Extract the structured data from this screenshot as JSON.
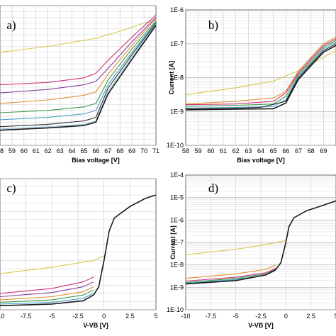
{
  "figure": {
    "panels": [
      {
        "id": "a",
        "label": "a)"
      },
      {
        "id": "b",
        "label": "b)"
      },
      {
        "id": "c",
        "label": "c)"
      },
      {
        "id": "d",
        "label": "d)"
      }
    ]
  },
  "chart_data": [
    {
      "panel": "a)",
      "type": "line",
      "title": "",
      "xlabel": "Bias voltage [V]",
      "ylabel": "",
      "y_scale": "linear",
      "grid": true,
      "xlim": [
        58,
        71
      ],
      "x_ticks": [
        "58",
        "59",
        "60",
        "61",
        "62",
        "63",
        "64",
        "65",
        "66",
        "67",
        "68",
        "69",
        "70",
        "71"
      ],
      "y_tick_labels": [],
      "series": [
        {
          "color": "#d9c64a",
          "points": [
            [
              58,
              8.0
            ],
            [
              62,
              8.5
            ],
            [
              66,
              9.2
            ],
            [
              68,
              9.8
            ],
            [
              70,
              10.5
            ],
            [
              71,
              10.8
            ]
          ]
        },
        {
          "color": "#d0307a",
          "points": [
            [
              58,
              5.2
            ],
            [
              62,
              5.4
            ],
            [
              65,
              5.8
            ],
            [
              66,
              6.2
            ],
            [
              67,
              7.3
            ],
            [
              69,
              9.3
            ],
            [
              71,
              11.2
            ]
          ]
        },
        {
          "color": "#8a3a9e",
          "points": [
            [
              58,
              4.5
            ],
            [
              62,
              4.8
            ],
            [
              65,
              5.2
            ],
            [
              66,
              5.5
            ],
            [
              67,
              6.6
            ],
            [
              69,
              8.9
            ],
            [
              71,
              11.0
            ]
          ]
        },
        {
          "color": "#e09030",
          "points": [
            [
              58,
              3.6
            ],
            [
              62,
              3.9
            ],
            [
              65,
              4.3
            ],
            [
              66,
              4.6
            ],
            [
              67,
              6.1
            ],
            [
              69,
              8.6
            ],
            [
              71,
              10.9
            ]
          ]
        },
        {
          "color": "#3a9a4a",
          "points": [
            [
              58,
              2.8
            ],
            [
              62,
              3.0
            ],
            [
              65,
              3.3
            ],
            [
              66,
              3.6
            ],
            [
              67,
              5.6
            ],
            [
              69,
              8.3
            ],
            [
              71,
              10.7
            ]
          ]
        },
        {
          "color": "#4aa0c8",
          "points": [
            [
              58,
              2.2
            ],
            [
              62,
              2.4
            ],
            [
              65,
              2.7
            ],
            [
              66,
              3.0
            ],
            [
              67,
              5.2
            ],
            [
              69,
              8.0
            ],
            [
              71,
              10.6
            ]
          ]
        },
        {
          "color": "#2a2a2a",
          "points": [
            [
              58,
              1.6
            ],
            [
              62,
              1.8
            ],
            [
              65,
              2.1
            ],
            [
              66,
              2.4
            ],
            [
              67,
              4.9
            ],
            [
              69,
              7.8
            ],
            [
              71,
              10.5
            ]
          ]
        },
        {
          "color": "#8fc8e0",
          "points": [
            [
              58,
              1.4
            ],
            [
              62,
              1.6
            ],
            [
              65,
              1.8
            ],
            [
              66,
              2.1
            ],
            [
              67,
              4.6
            ],
            [
              69,
              7.6
            ],
            [
              71,
              10.4
            ]
          ]
        },
        {
          "color": "#1a1a1a",
          "points": [
            [
              58,
              1.3
            ],
            [
              62,
              1.5
            ],
            [
              65,
              1.7
            ],
            [
              66,
              2.0
            ],
            [
              67,
              4.4
            ],
            [
              69,
              7.4
            ],
            [
              71,
              10.3
            ]
          ]
        }
      ]
    },
    {
      "panel": "b)",
      "type": "line",
      "title": "",
      "xlabel": "Bias voltage [V]",
      "ylabel": "Current [A]",
      "y_scale": "log",
      "grid": true,
      "xlim": [
        58,
        70
      ],
      "ylim": [
        "1E-10",
        "1E-6"
      ],
      "x_ticks": [
        "58",
        "59",
        "60",
        "61",
        "62",
        "63",
        "64",
        "65",
        "66",
        "67",
        "68",
        "69"
      ],
      "y_tick_labels": [
        "1E-6",
        "1E-7",
        "1E-8",
        "1E-9",
        "1E-10"
      ],
      "series": [
        {
          "color": "#d9c64a",
          "points": [
            [
              58,
              -8.5
            ],
            [
              62,
              -8.3
            ],
            [
              65,
              -8.1
            ],
            [
              67,
              -7.8
            ],
            [
              69,
              -7.4
            ],
            [
              70,
              -7.2
            ]
          ]
        },
        {
          "color": "#e09030",
          "points": [
            [
              58,
              -8.78
            ],
            [
              62,
              -8.7
            ],
            [
              65,
              -8.6
            ],
            [
              66,
              -8.4
            ],
            [
              67,
              -7.8
            ],
            [
              69,
              -7.0
            ],
            [
              70,
              -6.8
            ]
          ]
        },
        {
          "color": "#d0307a",
          "points": [
            [
              58,
              -8.8
            ],
            [
              62,
              -8.78
            ],
            [
              65,
              -8.7
            ],
            [
              66,
              -8.45
            ],
            [
              67,
              -7.85
            ],
            [
              69,
              -7.05
            ],
            [
              70,
              -6.85
            ]
          ]
        },
        {
          "color": "#3a9a4a",
          "points": [
            [
              58,
              -8.85
            ],
            [
              62,
              -8.82
            ],
            [
              65,
              -8.78
            ],
            [
              66,
              -8.55
            ],
            [
              67,
              -7.9
            ],
            [
              69,
              -7.1
            ],
            [
              70,
              -6.9
            ]
          ]
        },
        {
          "color": "#4aa0c8",
          "points": [
            [
              58,
              -8.9
            ],
            [
              62,
              -8.88
            ],
            [
              65,
              -8.85
            ],
            [
              66,
              -8.65
            ],
            [
              67,
              -7.95
            ],
            [
              69,
              -7.15
            ],
            [
              70,
              -6.95
            ]
          ]
        },
        {
          "color": "#2a2a2a",
          "points": [
            [
              58,
              -8.92
            ],
            [
              62,
              -8.9
            ],
            [
              64,
              -8.88
            ],
            [
              66,
              -8.7
            ],
            [
              67,
              -8.0
            ],
            [
              69,
              -7.2
            ],
            [
              70,
              -7.0
            ]
          ]
        },
        {
          "color": "#1a1a1a",
          "points": [
            [
              58,
              -8.95
            ],
            [
              62,
              -8.93
            ],
            [
              65,
              -8.92
            ],
            [
              66,
              -8.75
            ],
            [
              67,
              -8.05
            ],
            [
              69,
              -7.25
            ],
            [
              70,
              -7.05
            ]
          ]
        }
      ]
    },
    {
      "panel": "c)",
      "type": "line",
      "title": "",
      "xlabel": "V-VB [V]",
      "ylabel": "",
      "y_scale": "linear",
      "grid": true,
      "xlim": [
        -10,
        5
      ],
      "x_ticks": [
        "-10",
        "-7.5",
        "-5",
        "-2.5",
        "0",
        "2.5",
        "5"
      ],
      "y_tick_labels": [],
      "series": [
        {
          "color": "#d9c64a",
          "points": [
            [
              -10,
              2.2
            ],
            [
              -5,
              2.6
            ],
            [
              -1,
              3.0
            ],
            [
              0,
              3.3
            ]
          ]
        },
        {
          "color": "#d0307a",
          "points": [
            [
              -10,
              1.0
            ],
            [
              -5,
              1.3
            ],
            [
              -2,
              1.7
            ],
            [
              -1,
              2.0
            ]
          ]
        },
        {
          "color": "#8a3a9e",
          "points": [
            [
              -10,
              0.8
            ],
            [
              -5,
              1.05
            ],
            [
              -2,
              1.4
            ],
            [
              -1,
              1.7
            ]
          ]
        },
        {
          "color": "#e09030",
          "points": [
            [
              -10,
              0.6
            ],
            [
              -5,
              0.8
            ],
            [
              -2,
              1.1
            ],
            [
              -1,
              1.4
            ]
          ]
        },
        {
          "color": "#3a9a4a",
          "points": [
            [
              -10,
              0.45
            ],
            [
              -5,
              0.6
            ],
            [
              -2,
              0.9
            ],
            [
              -1,
              1.2
            ]
          ]
        },
        {
          "color": "#4aa0c8",
          "points": [
            [
              -10,
              0.35
            ],
            [
              -5,
              0.45
            ],
            [
              -2,
              0.7
            ],
            [
              -1,
              1.0
            ]
          ]
        },
        {
          "color": "#1a1a1a",
          "points": [
            [
              -10,
              0.25
            ],
            [
              -5,
              0.35
            ],
            [
              -2,
              0.55
            ],
            [
              -1,
              0.9
            ],
            [
              -0.5,
              1.4
            ],
            [
              0,
              3.0
            ],
            [
              0.5,
              4.8
            ],
            [
              1,
              5.6
            ],
            [
              2.5,
              6.3
            ],
            [
              4,
              6.8
            ],
            [
              5,
              7.0
            ]
          ]
        }
      ]
    },
    {
      "panel": "d)",
      "type": "line",
      "title": "",
      "xlabel": "V-VB [V]",
      "ylabel": "Current [A]",
      "y_scale": "log",
      "grid": true,
      "xlim": [
        -10,
        5
      ],
      "ylim": [
        "1E-10",
        "1E-4"
      ],
      "x_ticks": [
        "-10",
        "-7.5",
        "-5",
        "-2.5",
        "0",
        "2.5",
        "5"
      ],
      "y_tick_labels": [
        "1E-4",
        "1E-5",
        "1E-6",
        "1E-7",
        "1E-8",
        "1E-9",
        "1E-10"
      ],
      "series": [
        {
          "color": "#d9c64a",
          "points": [
            [
              -10,
              -7.55
            ],
            [
              -5,
              -7.3
            ],
            [
              -2,
              -7.1
            ],
            [
              0,
              -6.9
            ]
          ]
        },
        {
          "color": "#e09030",
          "points": [
            [
              -10,
              -8.6
            ],
            [
              -5,
              -8.4
            ],
            [
              -2,
              -8.2
            ],
            [
              -1,
              -8.0
            ]
          ]
        },
        {
          "color": "#d0307a",
          "points": [
            [
              -10,
              -8.72
            ],
            [
              -5,
              -8.55
            ],
            [
              -2,
              -8.35
            ],
            [
              -1,
              -8.15
            ]
          ]
        },
        {
          "color": "#3a9a4a",
          "points": [
            [
              -10,
              -8.78
            ],
            [
              -5,
              -8.6
            ],
            [
              -2,
              -8.4
            ],
            [
              -1,
              -8.2
            ]
          ]
        },
        {
          "color": "#4aa0c8",
          "points": [
            [
              -10,
              -8.82
            ],
            [
              -5,
              -8.65
            ],
            [
              -2,
              -8.45
            ],
            [
              -1,
              -8.25
            ]
          ]
        },
        {
          "color": "#1a1a1a",
          "points": [
            [
              -10,
              -8.85
            ],
            [
              -5,
              -8.7
            ],
            [
              -2,
              -8.45
            ],
            [
              -1,
              -8.2
            ],
            [
              -0.5,
              -7.9
            ],
            [
              0,
              -7.0
            ],
            [
              0.3,
              -6.3
            ],
            [
              0.8,
              -5.9
            ],
            [
              2,
              -5.6
            ],
            [
              4,
              -5.3
            ],
            [
              5,
              -5.15
            ]
          ]
        }
      ]
    }
  ]
}
